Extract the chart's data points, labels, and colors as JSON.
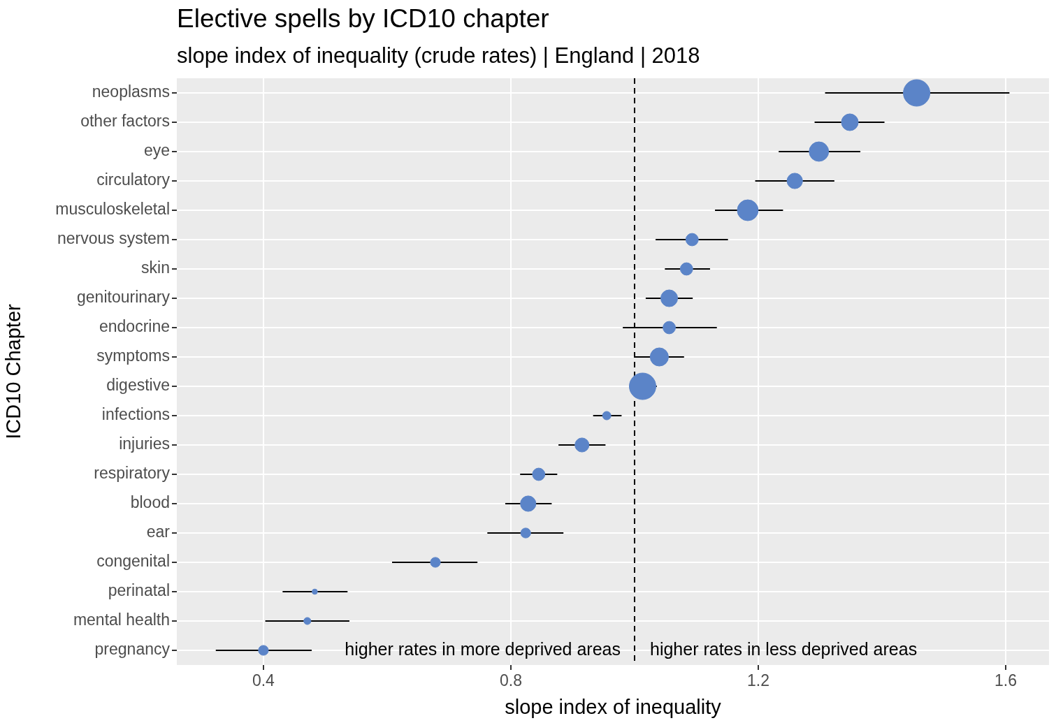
{
  "chart_data": {
    "type": "bubble",
    "orientation": "horizontal",
    "title": "Elective spells by ICD10 chapter",
    "subtitle": "slope index of inequality (crude rates) | England | 2018",
    "xlabel": "slope index of inequality",
    "ylabel": "ICD10 Chapter",
    "categories": [
      "neoplasms",
      "other factors",
      "eye",
      "circulatory",
      "musculoskeletal",
      "nervous system",
      "skin",
      "genitourinary",
      "endocrine",
      "symptoms",
      "digestive",
      "infections",
      "injuries",
      "respiratory",
      "blood",
      "ear",
      "congenital",
      "perinatal",
      "mental health",
      "pregnancy"
    ],
    "values": [
      1.456,
      1.348,
      1.298,
      1.259,
      1.183,
      1.093,
      1.084,
      1.056,
      1.056,
      1.04,
      1.013,
      0.955,
      0.915,
      0.845,
      0.828,
      0.824,
      0.678,
      0.483,
      0.471,
      0.4
    ],
    "errors": [
      [
        1.308,
        1.606
      ],
      [
        1.291,
        1.404
      ],
      [
        1.233,
        1.365
      ],
      [
        1.195,
        1.323
      ],
      [
        1.13,
        1.24
      ],
      [
        1.034,
        1.151
      ],
      [
        1.049,
        1.122
      ],
      [
        1.018,
        1.094
      ],
      [
        0.981,
        1.133
      ],
      [
        1.0,
        1.08
      ],
      [
        0.994,
        1.036
      ],
      [
        0.933,
        0.979
      ],
      [
        0.877,
        0.953
      ],
      [
        0.815,
        0.875
      ],
      [
        0.791,
        0.866
      ],
      [
        0.762,
        0.885
      ],
      [
        0.608,
        0.746
      ],
      [
        0.431,
        0.536
      ],
      [
        0.403,
        0.539
      ],
      [
        0.323,
        0.478
      ]
    ],
    "sizes": [
      1,
      0.4,
      0.54,
      0.34,
      0.62,
      0.22,
      0.22,
      0.4,
      0.22,
      0.47,
      1,
      0.1,
      0.28,
      0.22,
      0.34,
      0.14,
      0.14,
      0.04,
      0.07,
      0.14
    ],
    "color": "#5b84c8",
    "xlim": [
      0.26,
      1.67
    ],
    "xticks": [
      0.4,
      0.8,
      1.2,
      1.6
    ],
    "ref_lines": [
      {
        "axis": "x",
        "value": 1.0,
        "color": "#000000",
        "line_style": "dashed"
      }
    ],
    "annotations": [
      "higher rates in more deprived areas",
      "higher rates in less deprived areas"
    ],
    "grid": true,
    "legend": false,
    "marker": "circle"
  }
}
